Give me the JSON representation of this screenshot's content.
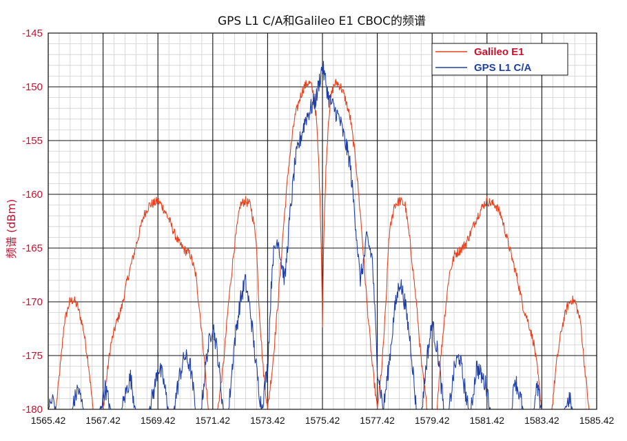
{
  "chart_data": {
    "type": "line",
    "title": "GPS L1 C/A和Galileo E1 CBOC的频谱",
    "xlabel": "",
    "ylabel": "频谱 (dBm)",
    "xlim": [
      1565.42,
      1585.42
    ],
    "ylim": [
      -180,
      -145
    ],
    "x_ticks": [
      "1565.42",
      "1567.42",
      "1569.42",
      "1571.42",
      "1573.42",
      "1575.42",
      "1577.42",
      "1579.42",
      "1581.42",
      "1583.42",
      "1585.42"
    ],
    "y_ticks": [
      "-145",
      "-150",
      "-155",
      "-160",
      "-165",
      "-170",
      "-175",
      "-180"
    ],
    "grid": true,
    "legend_position": "top-right",
    "series": [
      {
        "name": "Galileo E1",
        "color": "#e8401c",
        "legend_color": "#d0102a",
        "x": [
          1565.42,
          1565.7,
          1565.9,
          1566.0,
          1566.2,
          1566.35,
          1566.5,
          1566.7,
          1566.9,
          1567.05,
          1567.2,
          1567.42,
          1567.6,
          1567.7,
          1567.9,
          1568.1,
          1568.3,
          1568.5,
          1568.7,
          1568.9,
          1569.1,
          1569.3,
          1569.42,
          1569.55,
          1569.7,
          1569.85,
          1570.0,
          1570.2,
          1570.4,
          1570.6,
          1570.8,
          1570.95,
          1571.1,
          1571.25,
          1571.42,
          1571.6,
          1571.8,
          1572.0,
          1572.2,
          1572.42,
          1572.6,
          1572.8,
          1573.0,
          1573.1,
          1573.25,
          1573.42,
          1573.6,
          1573.8,
          1574.0,
          1574.2,
          1574.4,
          1574.6,
          1574.75,
          1574.9,
          1575.0,
          1575.1,
          1575.2,
          1575.3,
          1575.38,
          1575.42,
          1575.46,
          1575.54,
          1575.64,
          1575.74,
          1575.84,
          1575.94,
          1576.09,
          1576.24,
          1576.44,
          1576.64,
          1576.84,
          1577.04,
          1577.24,
          1577.42,
          1577.59,
          1577.74,
          1577.84,
          1578.04,
          1578.24,
          1578.44,
          1578.64,
          1578.84,
          1579.04,
          1579.24,
          1579.42,
          1579.59,
          1579.74,
          1579.89,
          1580.04,
          1580.24,
          1580.44,
          1580.64,
          1580.84,
          1580.99,
          1581.14,
          1581.29,
          1581.42,
          1581.54,
          1581.74,
          1581.94,
          1582.14,
          1582.34,
          1582.54,
          1582.74,
          1582.94,
          1583.14,
          1583.24,
          1583.42,
          1583.64,
          1583.79,
          1583.94,
          1584.14,
          1584.34,
          1584.49,
          1584.64,
          1584.84,
          1584.94,
          1585.14,
          1585.42
        ],
        "values": [
          -180,
          -180,
          -175,
          -172,
          -170,
          -169.8,
          -170.5,
          -172.5,
          -176,
          -180,
          -180,
          -180,
          -176,
          -174,
          -172,
          -170.5,
          -168,
          -166,
          -164,
          -162,
          -161,
          -160.8,
          -160.6,
          -161,
          -161.7,
          -162.5,
          -163.5,
          -164.6,
          -165.2,
          -165.6,
          -167.5,
          -171,
          -175,
          -180,
          -180,
          -180,
          -176,
          -170,
          -165,
          -161,
          -160.6,
          -161,
          -164,
          -170,
          -176,
          -180,
          -176,
          -170,
          -163,
          -157,
          -153,
          -151,
          -150,
          -149.6,
          -149.8,
          -150.8,
          -153,
          -158,
          -165,
          -172,
          -165,
          -158,
          -153,
          -150.8,
          -149.8,
          -149.6,
          -150,
          -151,
          -153,
          -157,
          -163,
          -170,
          -176,
          -180,
          -176,
          -170,
          -164,
          -161,
          -160.6,
          -161,
          -165,
          -170,
          -176,
          -180,
          -180,
          -180,
          -175,
          -171,
          -167.5,
          -165.6,
          -165.2,
          -164.6,
          -163.5,
          -162.5,
          -161.7,
          -161,
          -160.6,
          -160.8,
          -161,
          -162,
          -164,
          -166,
          -168,
          -170.5,
          -172,
          -174,
          -176,
          -180,
          -180,
          -180,
          -176,
          -172.5,
          -170.5,
          -169.8,
          -170,
          -172,
          -175,
          -180,
          -180
        ]
      },
      {
        "name": "GPS L1 C/A",
        "color": "#1f3fa8",
        "legend_color": "#1f3fa8",
        "x": [
          1565.42,
          1565.6,
          1565.7,
          1565.9,
          1566.1,
          1566.3,
          1566.5,
          1566.7,
          1566.9,
          1567.1,
          1567.3,
          1567.5,
          1567.7,
          1567.9,
          1568.1,
          1568.3,
          1568.42,
          1568.6,
          1568.8,
          1569.0,
          1569.1,
          1569.3,
          1569.42,
          1569.6,
          1569.8,
          1570.0,
          1570.2,
          1570.4,
          1570.6,
          1570.8,
          1571.0,
          1571.2,
          1571.42,
          1571.6,
          1571.8,
          1572.0,
          1572.2,
          1572.42,
          1572.6,
          1572.8,
          1573.0,
          1573.2,
          1573.42,
          1573.6,
          1573.8,
          1573.9,
          1574.05,
          1574.2,
          1574.42,
          1574.6,
          1574.8,
          1575.0,
          1575.2,
          1575.3,
          1575.35,
          1575.42,
          1575.49,
          1575.54,
          1575.64,
          1575.84,
          1576.04,
          1576.24,
          1576.42,
          1576.64,
          1576.79,
          1576.94,
          1577.04,
          1577.24,
          1577.42,
          1577.64,
          1577.84,
          1578.04,
          1578.24,
          1578.42,
          1578.64,
          1578.84,
          1579.04,
          1579.24,
          1579.42,
          1579.64,
          1579.84,
          1580.04,
          1580.24,
          1580.42,
          1580.54,
          1580.74,
          1580.84,
          1581.04,
          1581.24,
          1581.42,
          1581.54,
          1581.74,
          1581.94,
          1582.14,
          1582.34,
          1582.42,
          1582.54,
          1582.74,
          1582.94,
          1583.14,
          1583.24,
          1583.42,
          1583.64,
          1583.84,
          1584.04,
          1584.24,
          1584.42,
          1584.54,
          1584.64,
          1584.84,
          1585.0,
          1585.2,
          1585.42
        ],
        "values": [
          -180,
          -179,
          -180,
          -180,
          -180,
          -180,
          -178,
          -180,
          -180,
          -180,
          -180,
          -178,
          -180,
          -180,
          -180,
          -178,
          -177,
          -180,
          -180,
          -180,
          -180,
          -178,
          -176,
          -177,
          -180,
          -180,
          -177,
          -175,
          -176,
          -180,
          -180,
          -175,
          -172,
          -175,
          -180,
          -180,
          -174,
          -170,
          -168,
          -171,
          -176,
          -180,
          -176,
          -166,
          -164,
          -166,
          -168,
          -163,
          -157,
          -155,
          -153,
          -152,
          -151,
          -149.5,
          -149,
          -148,
          -149,
          -149.5,
          -151,
          -152,
          -153,
          -155,
          -157,
          -163,
          -168,
          -166,
          -164,
          -166,
          -176,
          -180,
          -176,
          -171,
          -168,
          -170,
          -174,
          -180,
          -180,
          -175,
          -172,
          -175,
          -180,
          -180,
          -176,
          -175,
          -177,
          -180,
          -180,
          -176,
          -177,
          -178,
          -180,
          -180,
          -180,
          -180,
          -180,
          -177,
          -178,
          -180,
          -180,
          -180,
          -178,
          -180,
          -180,
          -180,
          -180,
          -180,
          -179,
          -180,
          -180,
          -180,
          -180,
          -180,
          -180
        ]
      }
    ]
  }
}
